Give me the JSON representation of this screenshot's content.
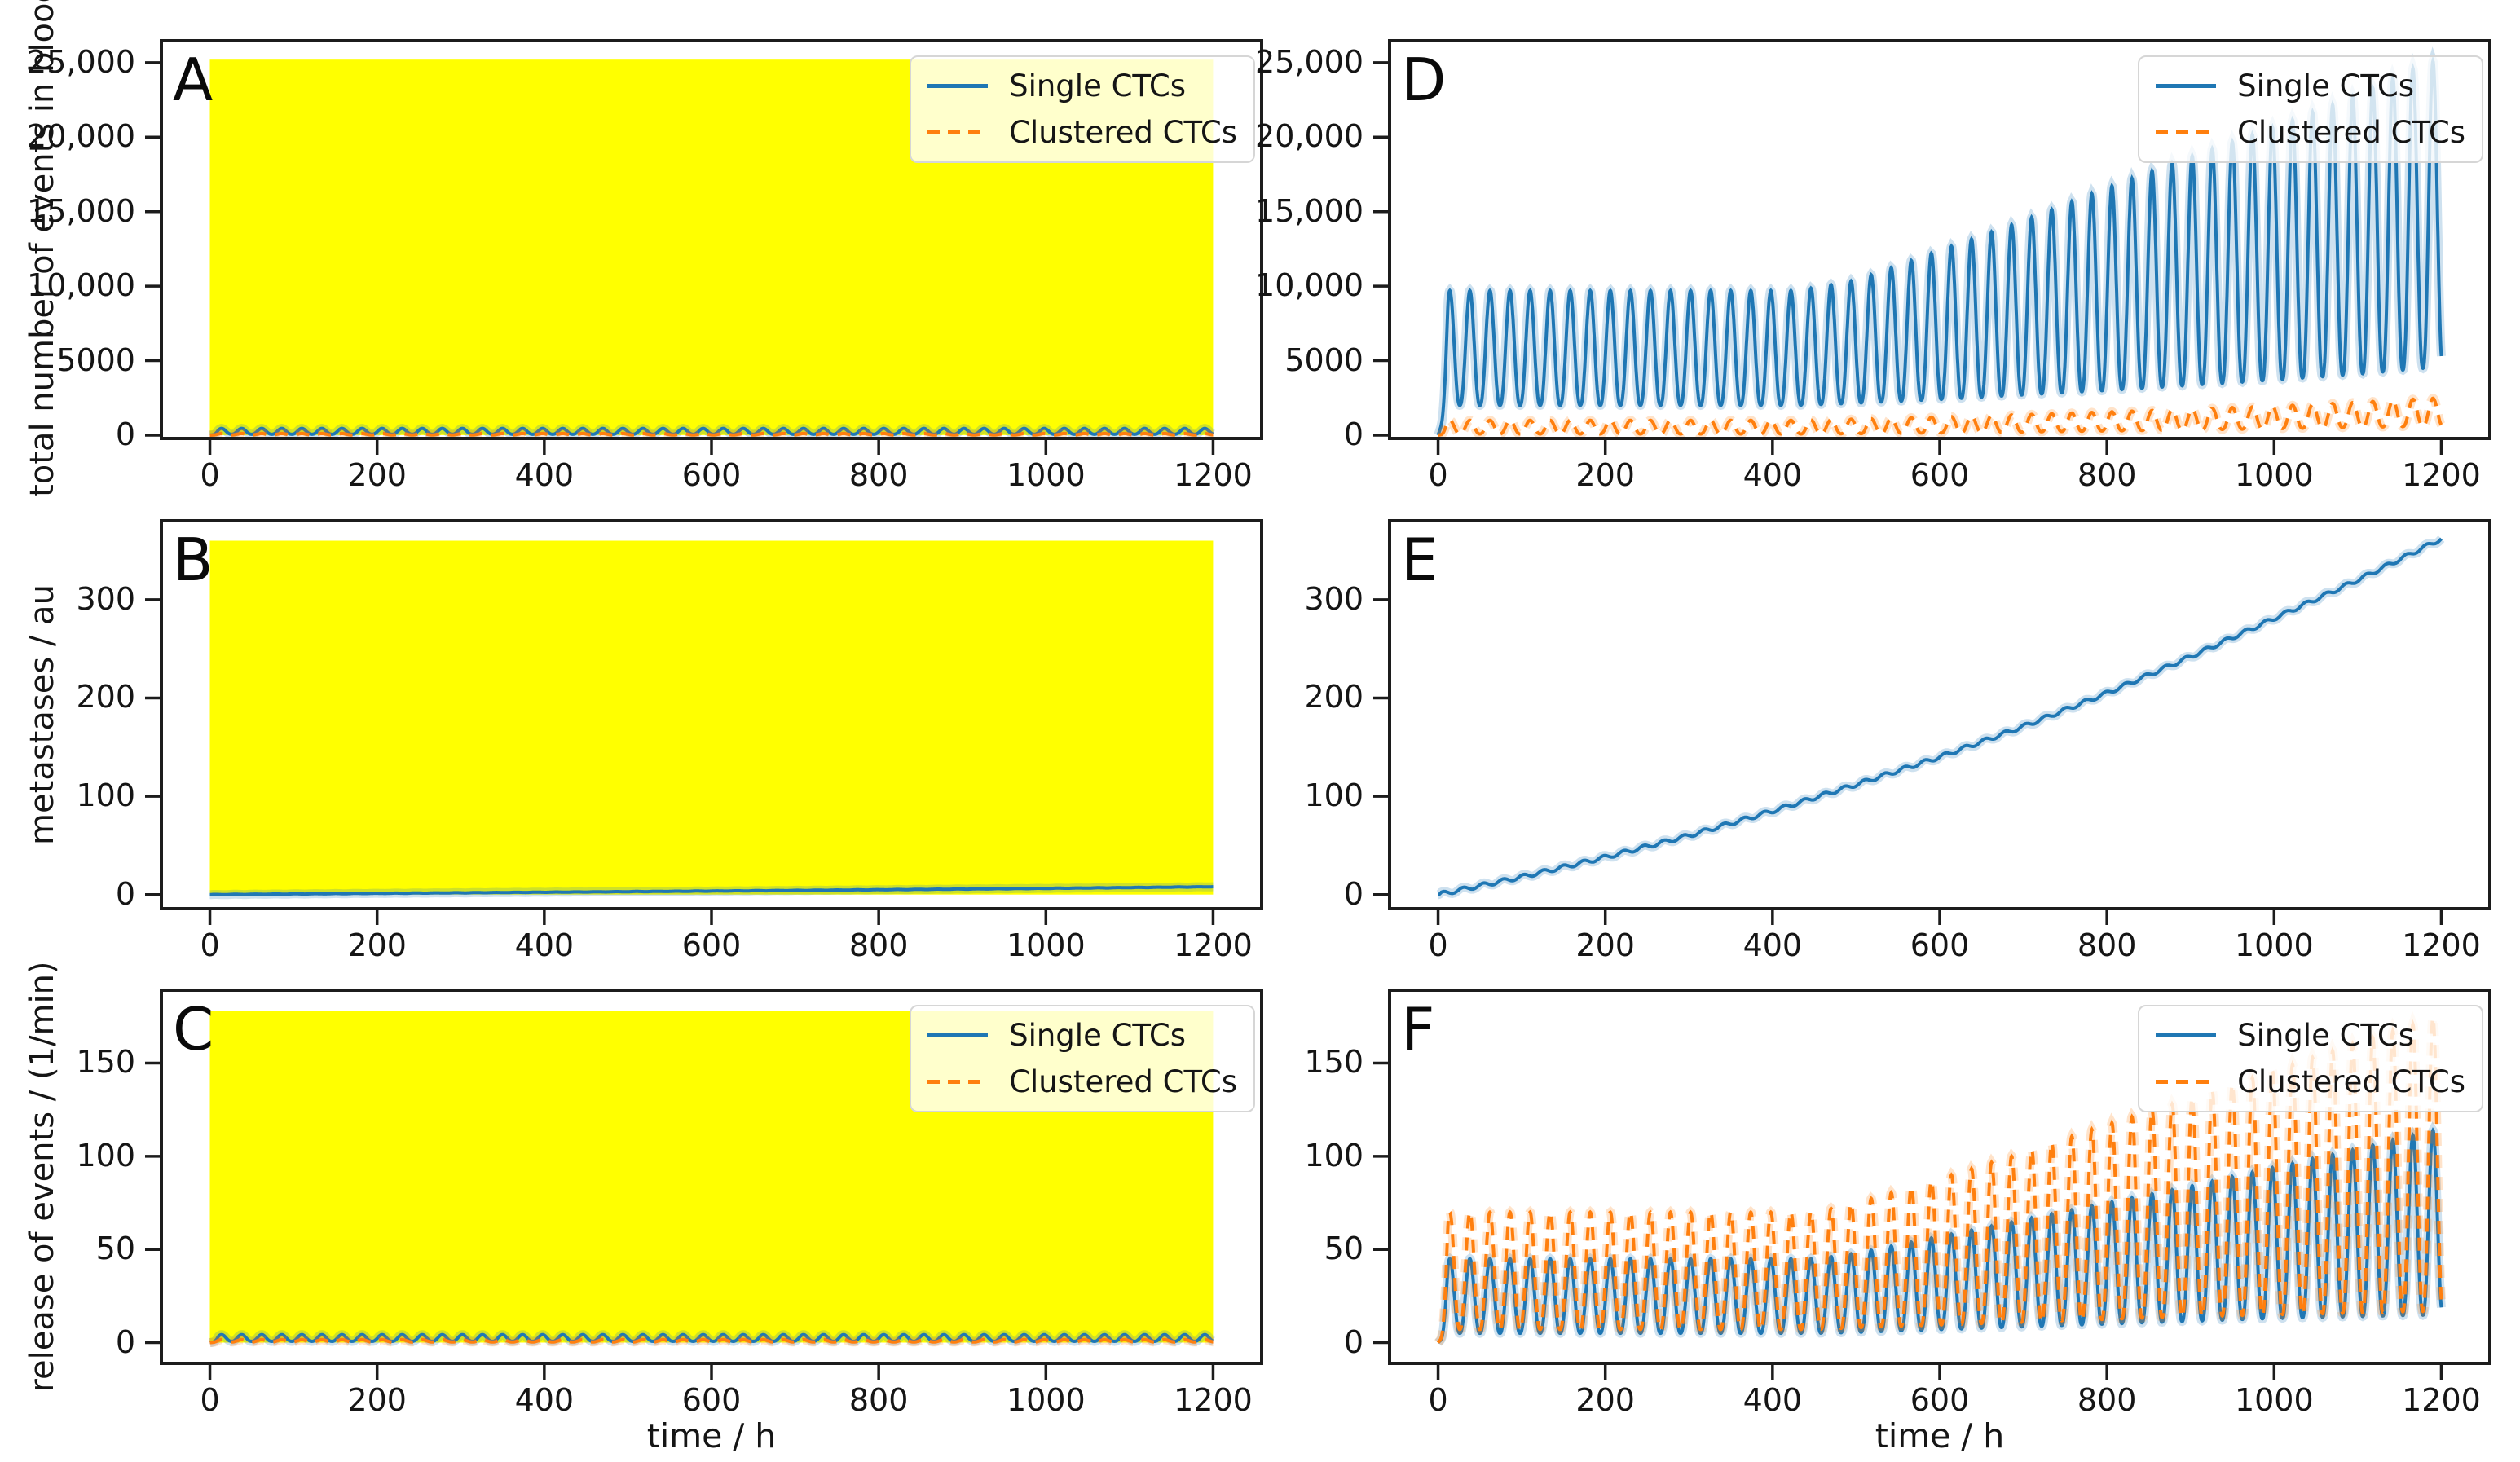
{
  "figure": {
    "xlabel": "time / h",
    "x_axis": {
      "tick_values": [
        0,
        200,
        400,
        600,
        800,
        1000,
        1200
      ],
      "tick_labels": [
        "0",
        "200",
        "400",
        "600",
        "800",
        "1000",
        "1200"
      ],
      "xlim": [
        -60,
        1260
      ],
      "data_range": [
        0,
        1200
      ]
    },
    "legend_labels": [
      "Single CTCs",
      "Clustered CTCs"
    ],
    "colors": {
      "single": "#1f77b4",
      "clustered": "#ff7f0e",
      "highlight": "#ffff00",
      "frame": "#1c1c1c",
      "legend_border": "#d6d6d6"
    }
  },
  "chart_data": [
    {
      "type": "line",
      "label": "A",
      "ylabel": "total number of events in blood",
      "ylim": [
        -330,
        26580
      ],
      "yticks": {
        "values": [
          0,
          5000,
          10000,
          15000,
          20000,
          25000
        ],
        "labels": [
          "0",
          "5000",
          "10,000",
          "15,000",
          "20,000",
          "25,000"
        ]
      },
      "highlight_region": {
        "x": [
          0,
          1200
        ],
        "y": [
          0,
          25200
        ]
      },
      "show_legend": true,
      "show_xlabel": false,
      "series": [
        {
          "name": "Single CTCs",
          "color_key": "single",
          "dashed": false,
          "type": "oscillatory",
          "period": 24,
          "phase": 2,
          "sharpness": 1.2,
          "ramp": 10,
          "envelope": {
            "x": [
              0,
              1200
            ],
            "peak": [
              450,
              450
            ],
            "trough": [
              60,
              60
            ]
          }
        },
        {
          "name": "Clustered CTCs",
          "color_key": "clustered",
          "dashed": true,
          "type": "oscillatory",
          "period": 24,
          "phase": 2,
          "sharpness": 1.2,
          "ramp": 10,
          "envelope": {
            "x": [
              0,
              1200
            ],
            "peak": [
              110,
              110
            ],
            "trough": [
              15,
              15
            ]
          }
        }
      ]
    },
    {
      "type": "line",
      "label": "B",
      "ylabel": "metastases / au",
      "ylim": [
        -16,
        382
      ],
      "yticks": {
        "values": [
          0,
          100,
          200,
          300
        ],
        "labels": [
          "0",
          "100",
          "200",
          "300"
        ]
      },
      "highlight_region": {
        "x": [
          0,
          1200
        ],
        "y": [
          0,
          360
        ]
      },
      "show_legend": false,
      "show_xlabel": false,
      "series": [
        {
          "name": "metastases",
          "color_key": "single",
          "dashed": false,
          "type": "smooth",
          "ripple": 0.15,
          "points": {
            "x": [
              0,
              100,
              200,
              300,
              400,
              500,
              600,
              700,
              800,
              900,
              1000,
              1100,
              1200
            ],
            "y": [
              0,
              0.6,
              1.2,
              1.8,
              2.4,
              3.0,
              3.6,
              4.2,
              4.9,
              5.6,
              6.3,
              7.1,
              8.0
            ]
          }
        }
      ]
    },
    {
      "type": "line",
      "label": "C",
      "ylabel": "release of events / (1/min)",
      "ylim": [
        -12,
        190
      ],
      "yticks": {
        "values": [
          0,
          50,
          100,
          150
        ],
        "labels": [
          "0",
          "50",
          "100",
          "150"
        ]
      },
      "highlight_region": {
        "x": [
          0,
          1200
        ],
        "y": [
          0,
          178
        ]
      },
      "show_legend": true,
      "show_xlabel": true,
      "series": [
        {
          "name": "Single CTCs",
          "color_key": "single",
          "dashed": false,
          "type": "oscillatory",
          "period": 24,
          "phase": 2,
          "sharpness": 1.2,
          "ramp": 10,
          "envelope": {
            "x": [
              0,
              1200
            ],
            "peak": [
              4.3,
              4.3
            ],
            "trough": [
              0.7,
              0.7
            ]
          }
        },
        {
          "name": "Clustered CTCs",
          "color_key": "clustered",
          "dashed": true,
          "type": "oscillatory",
          "period": 24,
          "phase": 2,
          "sharpness": 1.2,
          "ramp": 10,
          "envelope": {
            "x": [
              0,
              1200
            ],
            "peak": [
              1.6,
              1.6
            ],
            "trough": [
              0.35,
              0.35
            ]
          }
        }
      ]
    },
    {
      "type": "line",
      "label": "D",
      "ylabel": null,
      "ylim": [
        -330,
        26580
      ],
      "yticks": {
        "values": [
          0,
          5000,
          10000,
          15000,
          20000,
          25000
        ],
        "labels": [
          "0",
          "5000",
          "10,000",
          "15,000",
          "20,000",
          "25,000"
        ]
      },
      "highlight_region": null,
      "show_legend": true,
      "show_xlabel": false,
      "series": [
        {
          "name": "Single CTCs",
          "color_key": "single",
          "dashed": false,
          "type": "oscillatory",
          "period": 24,
          "phase": 2,
          "sharpness": 1.25,
          "ramp": 12,
          "envelope": {
            "x": [
              0,
              430,
              500,
              600,
              700,
              800,
              900,
              1000,
              1100,
              1160,
              1200
            ],
            "peak": [
              9700,
              9700,
              10400,
              12400,
              14400,
              16600,
              18700,
              20700,
              22800,
              24500,
              25300
            ],
            "trough": [
              2000,
              2000,
              2150,
              2400,
              2700,
              3000,
              3350,
              3700,
              4100,
              4400,
              4600
            ]
          }
        },
        {
          "name": "Clustered CTCs",
          "color_key": "clustered",
          "dashed": true,
          "type": "oscillatory",
          "period": 24,
          "phase": 2,
          "sharpness": 1.2,
          "ramp": 10,
          "envelope": {
            "x": [
              0,
              430,
              500,
              600,
              700,
              800,
              900,
              1000,
              1100,
              1160,
              1200
            ],
            "peak": [
              1000,
              1000,
              1080,
              1220,
              1380,
              1560,
              1750,
              1950,
              2200,
              2400,
              2500
            ],
            "trough": [
              80,
              80,
              100,
              150,
              210,
              280,
              350,
              430,
              520,
              580,
              620
            ]
          }
        }
      ]
    },
    {
      "type": "line",
      "label": "E",
      "ylabel": null,
      "ylim": [
        -16,
        382
      ],
      "yticks": {
        "values": [
          0,
          100,
          200,
          300
        ],
        "labels": [
          "0",
          "100",
          "200",
          "300"
        ]
      },
      "highlight_region": null,
      "show_legend": false,
      "show_xlabel": false,
      "series": [
        {
          "name": "metastases",
          "color_key": "single",
          "dashed": false,
          "type": "smooth",
          "ripple": 2,
          "points": {
            "x": [
              0,
              100,
              200,
              300,
              400,
              500,
              600,
              700,
              800,
              900,
              1000,
              1100,
              1200
            ],
            "y": [
              0,
              18,
              38,
              60,
              85,
              112,
              140,
              171,
              205,
              242,
              281,
              320,
              362
            ]
          }
        }
      ]
    },
    {
      "type": "line",
      "label": "F",
      "ylabel": null,
      "ylim": [
        -12,
        190
      ],
      "yticks": {
        "values": [
          0,
          50,
          100,
          150
        ],
        "labels": [
          "0",
          "50",
          "100",
          "150"
        ]
      },
      "highlight_region": null,
      "show_legend": true,
      "show_xlabel": true,
      "series": [
        {
          "name": "Single CTCs",
          "color_key": "single",
          "dashed": false,
          "type": "oscillatory",
          "period": 24,
          "phase": 2,
          "sharpness": 1.2,
          "ramp": 12,
          "envelope": {
            "x": [
              0,
              450,
              500,
              600,
              700,
              800,
              900,
              1000,
              1100,
              1200
            ],
            "peak": [
              45,
              45,
              48,
              57,
              66,
              75,
              84,
              94,
              104,
              115
            ],
            "trough": [
              5,
              5,
              5.5,
              7,
              8.5,
              10,
              11.5,
              13,
              14,
              15
            ]
          }
        },
        {
          "name": "Clustered CTCs",
          "color_key": "clustered",
          "dashed": true,
          "type": "oscillatory",
          "period": 24,
          "phase": 2,
          "sharpness": 1.2,
          "ramp": 12,
          "envelope": {
            "x": [
              0,
              450,
              500,
              600,
              700,
              800,
              900,
              1000,
              1100,
              1200
            ],
            "peak": [
              70,
              70,
              75,
              88,
              102,
              117,
              131,
              146,
              161,
              176
            ],
            "trough": [
              7,
              7,
              8,
              9.5,
              11,
              12.5,
              14,
              15,
              16,
              17
            ]
          }
        }
      ]
    }
  ]
}
